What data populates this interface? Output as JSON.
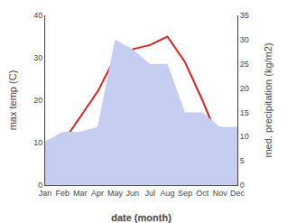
{
  "chart_data": {
    "type": "line",
    "categories": [
      "Jan",
      "Feb",
      "Mar",
      "Apr",
      "May",
      "Jun",
      "Jul",
      "Aug",
      "Sep",
      "Oct",
      "Nov",
      "Dec"
    ],
    "xlabel": "date (month)",
    "ylabel": "max temp (C)",
    "y2label": "med. precipitation (kg/m2)",
    "series": [
      {
        "type": "line",
        "color": "#cc2222",
        "values": [
          2,
          10,
          16,
          22,
          30,
          32,
          33,
          35,
          29,
          20,
          10,
          5
        ]
      },
      {
        "type": "area",
        "color": "#c5cef0",
        "axis": "y2",
        "values": [
          9,
          11,
          11,
          12,
          30,
          28,
          25,
          25,
          15,
          15,
          12,
          12
        ]
      }
    ],
    "ylim": [
      0,
      40
    ],
    "yticks": [
      0,
      10,
      20,
      30,
      40
    ],
    "y2lim": [
      0,
      35
    ],
    "y2ticks": [
      0,
      5,
      10,
      15,
      20,
      25,
      30,
      35
    ],
    "grid": false
  }
}
